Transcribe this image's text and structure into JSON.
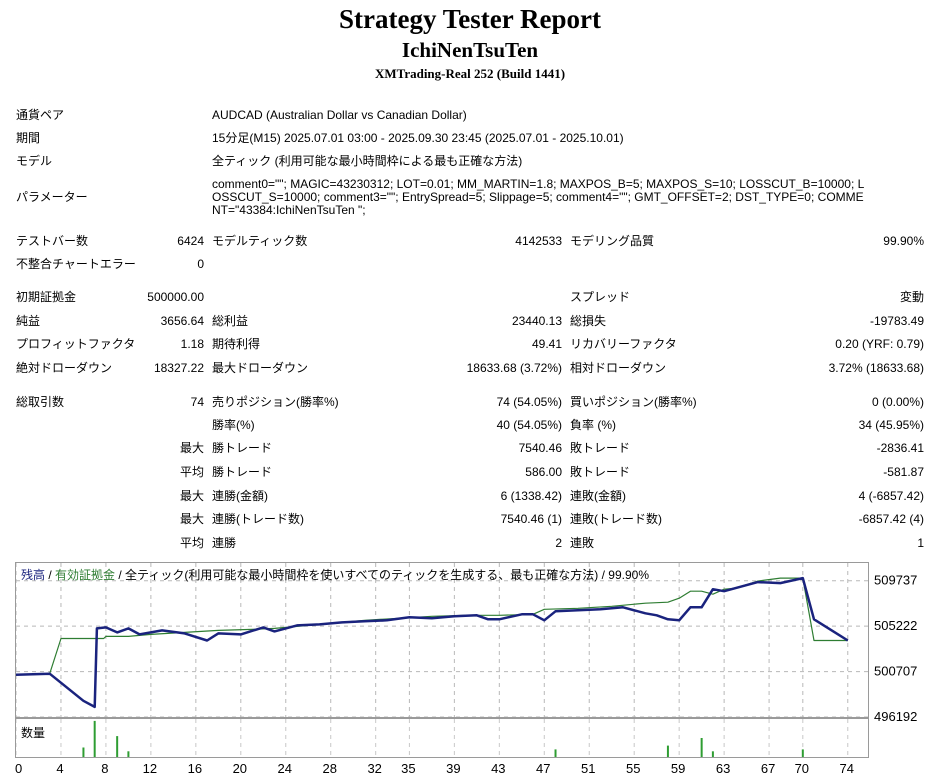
{
  "header": {
    "title": "Strategy Tester Report",
    "ea_name": "IchiNenTsuTen",
    "server": "XMTrading-Real 252 (Build 1441)"
  },
  "info": {
    "pair_label": "通貨ペア",
    "pair_value": "AUDCAD (Australian Dollar vs Canadian Dollar)",
    "period_label": "期間",
    "period_value": "15分足(M15) 2025.07.01 03:00 - 2025.09.30 23:45 (2025.07.01 - 2025.10.01)",
    "model_label": "モデル",
    "model_value": "全ティック (利用可能な最小時間枠による最も正確な方法)",
    "params_label": "パラメーター",
    "params_value": "comment0=\"\"; MAGIC=43230312; LOT=0.01; MM_MARTIN=1.8; MAXPOS_B=5; MAXPOS_S=10; LOSSCUT_B=10000; LOSSCUT_S=10000; comment3=\"\"; EntrySpread=5; Slippage=5; comment4=\"\"; GMT_OFFSET=2; DST_TYPE=0; COMMENT=\"43384:IchiNenTsuTen \";"
  },
  "stats": {
    "bars_label": "テストバー数",
    "bars_value": "6424",
    "ticks_label": "モデルティック数",
    "ticks_value": "4142533",
    "quality_label": "モデリング品質",
    "quality_value": "99.90%",
    "mismatch_label": "不整合チャートエラー",
    "mismatch_value": "0",
    "deposit_label": "初期証拠金",
    "deposit_value": "500000.00",
    "spread_label": "スプレッド",
    "spread_value": "変動",
    "net_label": "純益",
    "net_value": "3656.64",
    "gross_profit_label": "総利益",
    "gross_profit_value": "23440.13",
    "gross_loss_label": "総損失",
    "gross_loss_value": "-19783.49",
    "pf_label": "プロフィットファクタ",
    "pf_value": "1.18",
    "expected_label": "期待利得",
    "expected_value": "49.41",
    "recovery_label": "リカバリーファクタ",
    "recovery_value": "0.20 (YRF: 0.79)",
    "abs_dd_label": "絶対ドローダウン",
    "abs_dd_value": "18327.22",
    "max_dd_label": "最大ドローダウン",
    "max_dd_value": "18633.68 (3.72%)",
    "rel_dd_label": "相対ドローダウン",
    "rel_dd_value": "3.72% (18633.68)",
    "total_trades_label": "総取引数",
    "total_trades_value": "74",
    "short_label": "売りポジション(勝率%)",
    "short_value": "74 (54.05%)",
    "long_label": "買いポジション(勝率%)",
    "long_value": "0 (0.00%)",
    "win_rate_label": "勝率(%)",
    "win_rate_value": "40 (54.05%)",
    "loss_rate_label": "負率 (%)",
    "loss_rate_value": "34 (45.95%)",
    "largest": "最大",
    "average": "平均",
    "win_trade_label": "勝トレード",
    "loss_trade_label": "敗トレード",
    "largest_win_value": "7540.46",
    "largest_loss_value": "-2836.41",
    "average_win_value": "586.00",
    "average_loss_value": "-581.87",
    "cons_wins_money_label": "連勝(金額)",
    "cons_wins_money_value": "6 (1338.42)",
    "cons_losses_money_label": "連敗(金額)",
    "cons_losses_money_value": "4 (-6857.42)",
    "cons_wins_count_label": "連勝(トレード数)",
    "cons_wins_count_value": "7540.46 (1)",
    "cons_losses_count_label": "連敗(トレード数)",
    "cons_losses_count_value": "-6857.42 (4)",
    "avg_cons_wins_label": "連勝",
    "avg_cons_wins_value": "2",
    "avg_cons_losses_label": "連敗",
    "avg_cons_losses_value": "1"
  },
  "chart_data": {
    "type": "line",
    "legend": {
      "balance": "残高",
      "sep1": " / ",
      "equity": "有効証拠金",
      "rest": " / 全ティック(利用可能な最小時間枠を使いすべてのティックを生成する、最も正確な方法) / 99.90%"
    },
    "ylim": [
      496192,
      511500
    ],
    "yticks": [
      509737,
      505222,
      500707,
      496192
    ],
    "xticks": [
      0,
      4,
      8,
      12,
      16,
      20,
      24,
      28,
      32,
      35,
      39,
      43,
      47,
      51,
      55,
      59,
      63,
      67,
      70,
      74
    ],
    "series": [
      {
        "color": "#1a237e",
        "x": [
          0,
          3,
          6,
          7,
          7.2,
          8,
          9,
          10,
          11,
          13,
          15,
          17,
          18,
          20,
          22,
          23,
          25,
          27,
          29,
          31,
          33,
          35,
          37,
          39,
          41,
          42,
          43,
          45,
          46,
          47,
          48,
          50,
          52,
          54,
          56,
          57,
          58,
          59,
          60,
          61,
          62,
          63,
          66,
          68,
          70,
          71,
          74
        ],
        "y": [
          500400,
          500500,
          497800,
          497200,
          505000,
          505100,
          504600,
          505000,
          504400,
          504800,
          504500,
          503800,
          504500,
          504400,
          505100,
          504700,
          505300,
          505400,
          505600,
          505700,
          505800,
          506100,
          506000,
          506200,
          506300,
          505900,
          505900,
          506400,
          506400,
          505800,
          506700,
          506800,
          506900,
          507100,
          506500,
          506300,
          505900,
          505800,
          507100,
          507100,
          508900,
          508700,
          509600,
          509500,
          510000,
          505900,
          503800
        ]
      },
      {
        "color": "#2e7d32",
        "x": [
          0,
          3,
          4,
          7.8,
          8,
          10,
          12,
          15,
          18,
          21,
          23,
          25,
          28,
          31,
          34,
          37,
          40,
          43,
          46,
          47,
          50,
          53,
          56,
          58,
          59,
          60,
          61,
          62,
          63,
          64,
          66,
          68,
          70,
          71,
          74
        ],
        "y": [
          500400,
          500500,
          504000,
          504000,
          504200,
          504200,
          504400,
          504600,
          504800,
          504900,
          505000,
          505200,
          505500,
          505800,
          506000,
          506200,
          506300,
          506300,
          506400,
          506900,
          507000,
          507200,
          507500,
          507600,
          508000,
          508700,
          508700,
          508400,
          508900,
          509000,
          509700,
          510000,
          510000,
          503800,
          503800
        ]
      }
    ],
    "volume": [
      {
        "x": 6,
        "v": 0.25
      },
      {
        "x": 7,
        "v": 0.95
      },
      {
        "x": 9,
        "v": 0.55
      },
      {
        "x": 10,
        "v": 0.15
      },
      {
        "x": 48,
        "v": 0.2
      },
      {
        "x": 58,
        "v": 0.3
      },
      {
        "x": 61,
        "v": 0.5
      },
      {
        "x": 62,
        "v": 0.15
      },
      {
        "x": 70,
        "v": 0.2
      }
    ]
  }
}
